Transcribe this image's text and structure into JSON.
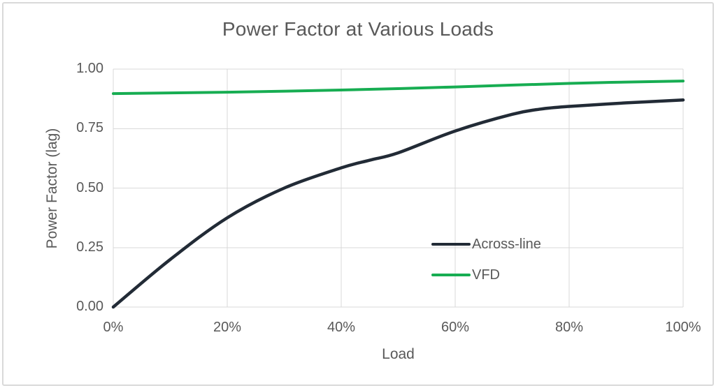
{
  "frame": {
    "background": "#ffffff",
    "border_color": "#d9d9d9",
    "gridline_color": "#d9d9d9",
    "text_color": "#595959"
  },
  "chart_data": {
    "type": "line",
    "title": "Power Factor at Various Loads",
    "xlabel": "Load",
    "ylabel": "Power Factor (lag)",
    "xlim": [
      0,
      100
    ],
    "ylim": [
      0.0,
      1.0
    ],
    "grid": true,
    "x_ticks": [
      "0%",
      "20%",
      "40%",
      "60%",
      "80%",
      "100%"
    ],
    "y_ticks": [
      "1.00",
      "0.75",
      "0.50",
      "0.25",
      "0.00"
    ],
    "legend_position": "inside-center-right",
    "series": [
      {
        "name": "Across-line",
        "color": "#222b36",
        "stroke_width": 4.5,
        "smooth": true,
        "x": [
          0,
          10,
          20,
          30,
          40,
          45,
          50,
          60,
          70,
          75,
          80,
          90,
          100
        ],
        "y": [
          0.0,
          0.2,
          0.375,
          0.5,
          0.585,
          0.617,
          0.648,
          0.74,
          0.81,
          0.832,
          0.843,
          0.858,
          0.87
        ]
      },
      {
        "name": "VFD",
        "color": "#17ad52",
        "stroke_width": 4,
        "smooth": true,
        "x": [
          0,
          20,
          40,
          60,
          80,
          100
        ],
        "y": [
          0.897,
          0.903,
          0.912,
          0.925,
          0.94,
          0.95
        ]
      }
    ]
  }
}
